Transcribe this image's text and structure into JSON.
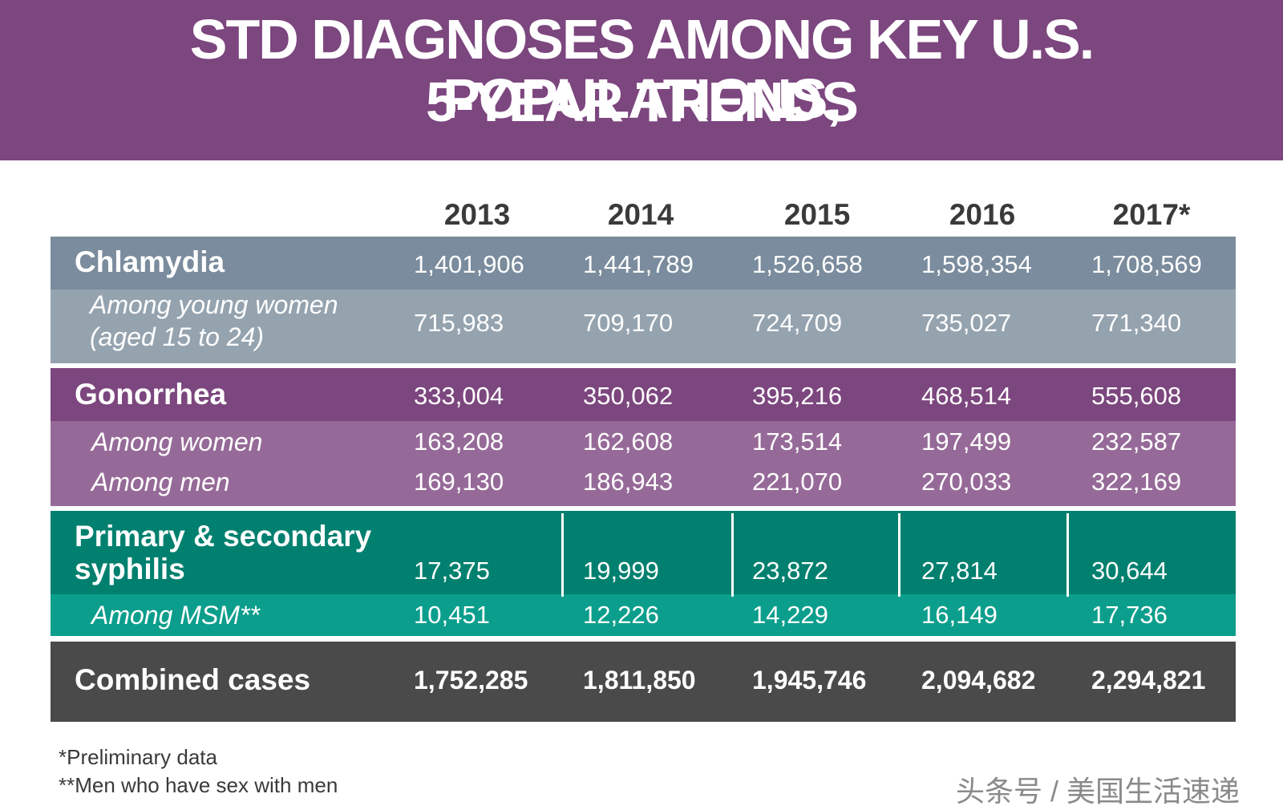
{
  "title_line1": "STD DIAGNOSES AMONG KEY U.S. POPULATIONS,",
  "title_line2": "5-YEAR TRENDS",
  "colors": {
    "title_band": "#7c467e",
    "chlamydia_main": "#7a8c9d",
    "chlamydia_sub": "#95a3af",
    "gonorrhea_main": "#7c467e",
    "gonorrhea_sub": "#966a98",
    "syphilis_main": "#01806f",
    "syphilis_sub": "#0c9e8c",
    "combined": "#4a4a4a"
  },
  "chart_data": {
    "type": "table",
    "title": "STD DIAGNOSES AMONG KEY U.S. POPULATIONS, 5-YEAR TRENDS",
    "columns": [
      "2013",
      "2014",
      "2015",
      "2016",
      "2017*"
    ],
    "rows": [
      {
        "label": "Chlamydia",
        "values": [
          "1,401,906",
          "1,441,789",
          "1,526,658",
          "1,598,354",
          "1,708,569"
        ]
      },
      {
        "label_line1": "Among young women",
        "label_line2": "(aged 15 to 24)",
        "values": [
          "715,983",
          "709,170",
          "724,709",
          "735,027",
          "771,340"
        ]
      },
      {
        "label": "Gonorrhea",
        "values": [
          "333,004",
          "350,062",
          "395,216",
          "468,514",
          "555,608"
        ]
      },
      {
        "label": "Among women",
        "values": [
          "163,208",
          "162,608",
          "173,514",
          "197,499",
          "232,587"
        ]
      },
      {
        "label": "Among men",
        "values": [
          "169,130",
          "186,943",
          "221,070",
          "270,033",
          "322,169"
        ]
      },
      {
        "label_line1": "Primary & secondary",
        "label_line2": "syphilis",
        "values": [
          "17,375",
          "19,999",
          "23,872",
          "27,814",
          "30,644"
        ]
      },
      {
        "label": "Among MSM**",
        "values": [
          "10,451",
          "12,226",
          "14,229",
          "16,149",
          "17,736"
        ]
      },
      {
        "label": "Combined cases",
        "values": [
          "1,752,285",
          "1,811,850",
          "1,945,746",
          "2,094,682",
          "2,294,821"
        ]
      }
    ],
    "footnotes": [
      "*Preliminary data",
      "**Men who have sex with men"
    ]
  },
  "watermark": "头条号 / 美国生活速递"
}
